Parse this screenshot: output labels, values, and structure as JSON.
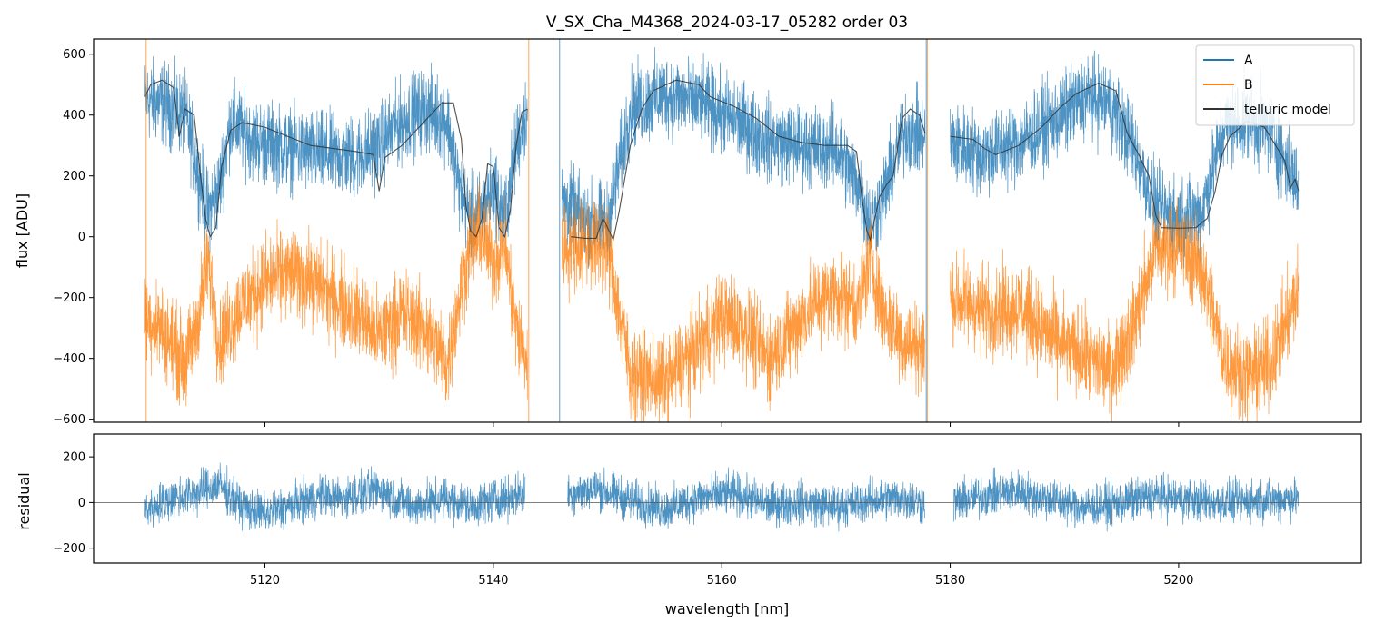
{
  "chart_data": [
    {
      "type": "line",
      "title": "V_SX_Cha_M4368_2024-03-17_05282  order 03",
      "xlabel": "",
      "ylabel": "flux [ADU]",
      "xlim": [
        5105,
        5216
      ],
      "ylim": [
        -610,
        650
      ],
      "yticks": [
        -600,
        -400,
        -200,
        0,
        200,
        400,
        600
      ],
      "yticklabels": [
        "−600",
        "−400",
        "−200",
        "0",
        "200",
        "400",
        "600"
      ],
      "xticks": [
        5120,
        5140,
        5160,
        5180,
        5200
      ],
      "legend": {
        "position": "top-right",
        "entries": [
          "A",
          "B",
          "telluric model"
        ]
      },
      "colors": {
        "A": "#1f77b4",
        "B": "#ff7f0e",
        "telluric model": "#333333"
      },
      "series": [
        {
          "name": "A",
          "segments": [
            [
              5109.5,
              5143.0
            ],
            [
              5146.0,
              5177.8
            ],
            [
              5180.0,
              5210.5
            ]
          ],
          "envelope": [
            [
              5109.5,
              450
            ],
            [
              5111,
              440
            ],
            [
              5113,
              400
            ],
            [
              5114,
              240
            ],
            [
              5115,
              80
            ],
            [
              5116,
              160
            ],
            [
              5117,
              380
            ],
            [
              5119,
              320
            ],
            [
              5122,
              290
            ],
            [
              5125,
              270
            ],
            [
              5128,
              260
            ],
            [
              5130,
              300
            ],
            [
              5132,
              380
            ],
            [
              5134,
              420
            ],
            [
              5136,
              380
            ],
            [
              5137,
              160
            ],
            [
              5138,
              60
            ],
            [
              5139,
              80
            ],
            [
              5140,
              170
            ],
            [
              5141,
              60
            ],
            [
              5142,
              300
            ],
            [
              5143,
              420
            ],
            [
              5146,
              120
            ],
            [
              5148,
              50
            ],
            [
              5150,
              40
            ],
            [
              5152,
              420
            ],
            [
              5155,
              470
            ],
            [
              5158,
              440
            ],
            [
              5161,
              390
            ],
            [
              5164,
              320
            ],
            [
              5167,
              300
            ],
            [
              5170,
              290
            ],
            [
              5172,
              170
            ],
            [
              5173,
              40
            ],
            [
              5174,
              120
            ],
            [
              5176,
              350
            ],
            [
              5177.8,
              330
            ],
            [
              5180,
              310
            ],
            [
              5183,
              270
            ],
            [
              5186,
              310
            ],
            [
              5189,
              380
            ],
            [
              5192,
              460
            ],
            [
              5194,
              440
            ],
            [
              5196,
              300
            ],
            [
              5198,
              90
            ],
            [
              5200,
              60
            ],
            [
              5202,
              80
            ],
            [
              5204,
              360
            ],
            [
              5206,
              380
            ],
            [
              5208,
              350
            ],
            [
              5210.5,
              160
            ]
          ],
          "noise": 110
        },
        {
          "name": "B",
          "segments": [
            [
              5109.5,
              5143.0
            ],
            [
              5146.0,
              5177.8
            ],
            [
              5180.0,
              5210.5
            ]
          ],
          "envelope": [
            [
              5109.5,
              -260
            ],
            [
              5111,
              -300
            ],
            [
              5113,
              -420
            ],
            [
              5114,
              -300
            ],
            [
              5115,
              -80
            ],
            [
              5116,
              -350
            ],
            [
              5118,
              -220
            ],
            [
              5120,
              -150
            ],
            [
              5122,
              -120
            ],
            [
              5124,
              -140
            ],
            [
              5126,
              -200
            ],
            [
              5128,
              -250
            ],
            [
              5130,
              -330
            ],
            [
              5132,
              -250
            ],
            [
              5134,
              -300
            ],
            [
              5136,
              -420
            ],
            [
              5137,
              -200
            ],
            [
              5138,
              -20
            ],
            [
              5139,
              10
            ],
            [
              5140,
              -80
            ],
            [
              5141,
              -20
            ],
            [
              5142,
              -300
            ],
            [
              5143,
              -420
            ],
            [
              5146,
              -40
            ],
            [
              5148,
              -20
            ],
            [
              5150,
              -30
            ],
            [
              5152,
              -450
            ],
            [
              5155,
              -480
            ],
            [
              5158,
              -360
            ],
            [
              5160,
              -260
            ],
            [
              5162,
              -300
            ],
            [
              5164,
              -400
            ],
            [
              5166,
              -320
            ],
            [
              5168,
              -220
            ],
            [
              5170,
              -180
            ],
            [
              5172,
              -230
            ],
            [
              5173,
              -60
            ],
            [
              5174,
              -240
            ],
            [
              5176,
              -350
            ],
            [
              5177.8,
              -360
            ],
            [
              5180,
              -200
            ],
            [
              5183,
              -240
            ],
            [
              5186,
              -230
            ],
            [
              5188,
              -300
            ],
            [
              5190,
              -360
            ],
            [
              5192,
              -400
            ],
            [
              5194,
              -440
            ],
            [
              5196,
              -300
            ],
            [
              5198,
              -40
            ],
            [
              5200,
              -30
            ],
            [
              5202,
              -100
            ],
            [
              5204,
              -400
            ],
            [
              5206,
              -460
            ],
            [
              5208,
              -420
            ],
            [
              5210.5,
              -180
            ]
          ],
          "noise": 120
        },
        {
          "name": "telluric model",
          "segments": [
            [
              5109.5,
              5143.0
            ],
            [
              5146.5,
              5177.8
            ],
            [
              5180.0,
              5210.5
            ]
          ],
          "points": [
            [
              5109.5,
              460
            ],
            [
              5110,
              500
            ],
            [
              5111,
              515
            ],
            [
              5112,
              490
            ],
            [
              5112.5,
              330
            ],
            [
              5113,
              420
            ],
            [
              5113.8,
              400
            ],
            [
              5114.3,
              220
            ],
            [
              5114.8,
              60
            ],
            [
              5115.2,
              0
            ],
            [
              5115.7,
              30
            ],
            [
              5116.2,
              230
            ],
            [
              5117,
              350
            ],
            [
              5118,
              375
            ],
            [
              5120,
              360
            ],
            [
              5122,
              330
            ],
            [
              5124,
              300
            ],
            [
              5126,
              290
            ],
            [
              5128,
              280
            ],
            [
              5129.5,
              270
            ],
            [
              5130,
              150
            ],
            [
              5130.5,
              260
            ],
            [
              5132,
              300
            ],
            [
              5134,
              380
            ],
            [
              5135.5,
              440
            ],
            [
              5136.5,
              440
            ],
            [
              5137.2,
              320
            ],
            [
              5137.6,
              100
            ],
            [
              5138,
              20
            ],
            [
              5138.5,
              0
            ],
            [
              5139,
              60
            ],
            [
              5139.5,
              240
            ],
            [
              5140,
              230
            ],
            [
              5140.5,
              30
            ],
            [
              5141,
              0
            ],
            [
              5141.5,
              90
            ],
            [
              5142,
              300
            ],
            [
              5142.5,
              410
            ],
            [
              5143,
              420
            ],
            [
              5146.8,
              0
            ],
            [
              5148,
              -5
            ],
            [
              5149,
              -5
            ],
            [
              5149.6,
              60
            ],
            [
              5150,
              30
            ],
            [
              5150.5,
              -10
            ],
            [
              5151,
              80
            ],
            [
              5152,
              300
            ],
            [
              5153,
              420
            ],
            [
              5154,
              480
            ],
            [
              5156,
              515
            ],
            [
              5158,
              500
            ],
            [
              5159,
              460
            ],
            [
              5161,
              430
            ],
            [
              5163,
              390
            ],
            [
              5165,
              330
            ],
            [
              5167,
              310
            ],
            [
              5169,
              300
            ],
            [
              5171,
              300
            ],
            [
              5171.8,
              280
            ],
            [
              5172.3,
              120
            ],
            [
              5172.7,
              20
            ],
            [
              5173,
              -10
            ],
            [
              5173.4,
              60
            ],
            [
              5173.8,
              130
            ],
            [
              5174.4,
              170
            ],
            [
              5175,
              200
            ],
            [
              5175.8,
              390
            ],
            [
              5176.5,
              420
            ],
            [
              5177.3,
              400
            ],
            [
              5177.8,
              340
            ],
            [
              5180,
              330
            ],
            [
              5182,
              320
            ],
            [
              5183,
              290
            ],
            [
              5184,
              270
            ],
            [
              5186,
              300
            ],
            [
              5188,
              360
            ],
            [
              5189.5,
              420
            ],
            [
              5191,
              470
            ],
            [
              5193,
              505
            ],
            [
              5194.5,
              480
            ],
            [
              5195.5,
              340
            ],
            [
              5196.5,
              270
            ],
            [
              5197.4,
              200
            ],
            [
              5198,
              70
            ],
            [
              5198.5,
              30
            ],
            [
              5200,
              28
            ],
            [
              5201.5,
              30
            ],
            [
              5202.5,
              60
            ],
            [
              5203.2,
              150
            ],
            [
              5203.8,
              270
            ],
            [
              5204.5,
              330
            ],
            [
              5206,
              380
            ],
            [
              5207.5,
              360
            ],
            [
              5208.5,
              300
            ],
            [
              5209.3,
              250
            ],
            [
              5209.8,
              160
            ],
            [
              5210.2,
              190
            ],
            [
              5210.5,
              150
            ]
          ]
        }
      ]
    },
    {
      "type": "line",
      "title": "",
      "xlabel": "wavelength [nm]",
      "ylabel": "residual",
      "xlim": [
        5105,
        5216
      ],
      "ylim": [
        -265,
        300
      ],
      "yticks": [
        -200,
        0,
        200
      ],
      "yticklabels": [
        "−200",
        "0",
        "200"
      ],
      "xticks": [
        5120,
        5140,
        5160,
        5180,
        5200
      ],
      "xticklabels": [
        "5120",
        "5140",
        "5160",
        "5180",
        "5200"
      ],
      "reference_line": 0,
      "series": [
        {
          "name": "residual",
          "segments": [
            [
              5109.5,
              5142.8
            ],
            [
              5146.5,
              5177.8
            ],
            [
              5180.3,
              5210.5
            ]
          ],
          "envelope": [
            [
              5109.5,
              -30
            ],
            [
              5112,
              20
            ],
            [
              5114,
              40
            ],
            [
              5116,
              80
            ],
            [
              5118,
              -20
            ],
            [
              5120,
              -50
            ],
            [
              5123,
              0
            ],
            [
              5125,
              30
            ],
            [
              5127,
              20
            ],
            [
              5130,
              60
            ],
            [
              5133,
              -20
            ],
            [
              5136,
              20
            ],
            [
              5138,
              -20
            ],
            [
              5140,
              10
            ],
            [
              5142.8,
              40
            ],
            [
              5146.5,
              40
            ],
            [
              5149,
              60
            ],
            [
              5152,
              10
            ],
            [
              5155,
              -30
            ],
            [
              5158,
              20
            ],
            [
              5161,
              40
            ],
            [
              5164,
              -10
            ],
            [
              5167,
              0
            ],
            [
              5170,
              -20
            ],
            [
              5173,
              10
            ],
            [
              5176,
              20
            ],
            [
              5177.8,
              -10
            ],
            [
              5180.3,
              0
            ],
            [
              5183,
              30
            ],
            [
              5186,
              50
            ],
            [
              5189,
              10
            ],
            [
              5192,
              -20
            ],
            [
              5195,
              0
            ],
            [
              5198,
              30
            ],
            [
              5201,
              10
            ],
            [
              5204,
              0
            ],
            [
              5207,
              10
            ],
            [
              5210.5,
              20
            ]
          ],
          "noise": 75
        }
      ]
    }
  ]
}
